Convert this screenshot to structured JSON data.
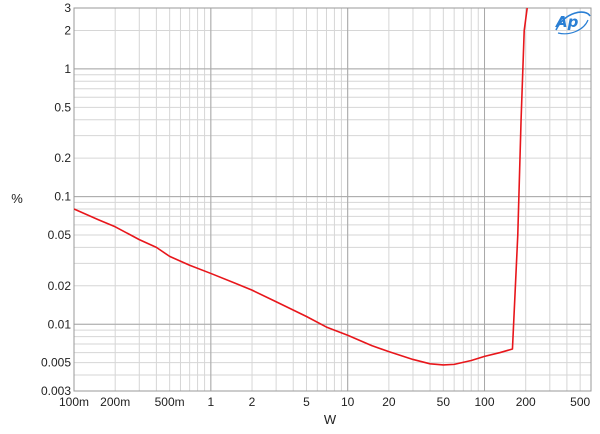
{
  "chart_data": {
    "type": "line",
    "xlabel": "W",
    "ylabel": "%",
    "x_scale": "log",
    "y_scale": "log",
    "xlim": [
      0.1,
      600
    ],
    "ylim": [
      0.003,
      3
    ],
    "grid": true,
    "x_ticks": [
      {
        "value": 0.1,
        "label": "100m"
      },
      {
        "value": 0.2,
        "label": "200m"
      },
      {
        "value": 0.5,
        "label": "500m"
      },
      {
        "value": 1,
        "label": "1"
      },
      {
        "value": 2,
        "label": "2"
      },
      {
        "value": 5,
        "label": "5"
      },
      {
        "value": 10,
        "label": "10"
      },
      {
        "value": 20,
        "label": "20"
      },
      {
        "value": 50,
        "label": "50"
      },
      {
        "value": 100,
        "label": "100"
      },
      {
        "value": 200,
        "label": "200"
      },
      {
        "value": 500,
        "label": "500"
      }
    ],
    "y_ticks": [
      {
        "value": 0.003,
        "label": "0.003"
      },
      {
        "value": 0.005,
        "label": "0.005"
      },
      {
        "value": 0.01,
        "label": "0.01"
      },
      {
        "value": 0.02,
        "label": "0.02"
      },
      {
        "value": 0.05,
        "label": "0.05"
      },
      {
        "value": 0.1,
        "label": "0.1"
      },
      {
        "value": 0.2,
        "label": "0.2"
      },
      {
        "value": 0.5,
        "label": "0.5"
      },
      {
        "value": 1,
        "label": "1"
      },
      {
        "value": 2,
        "label": "2"
      },
      {
        "value": 3,
        "label": "3"
      }
    ],
    "series": [
      {
        "color": "#e8161b",
        "points": [
          [
            0.1,
            0.08
          ],
          [
            0.15,
            0.066
          ],
          [
            0.2,
            0.058
          ],
          [
            0.3,
            0.046
          ],
          [
            0.4,
            0.04
          ],
          [
            0.5,
            0.034
          ],
          [
            0.7,
            0.029
          ],
          [
            1.0,
            0.025
          ],
          [
            1.5,
            0.021
          ],
          [
            2.0,
            0.0185
          ],
          [
            3.0,
            0.015
          ],
          [
            5.0,
            0.0115
          ],
          [
            7.0,
            0.0095
          ],
          [
            10.0,
            0.0082
          ],
          [
            15.0,
            0.0068
          ],
          [
            20.0,
            0.0061
          ],
          [
            30.0,
            0.0053
          ],
          [
            40.0,
            0.0049
          ],
          [
            50.0,
            0.0048
          ],
          [
            60.0,
            0.00485
          ],
          [
            80.0,
            0.0052
          ],
          [
            100.0,
            0.0056
          ],
          [
            130.0,
            0.006
          ],
          [
            160.0,
            0.0064
          ],
          [
            175.0,
            0.05
          ],
          [
            185.0,
            0.4
          ],
          [
            195.0,
            2.0
          ],
          [
            205.0,
            3.0
          ]
        ]
      }
    ]
  },
  "logo": {
    "text": "Ap",
    "color": "#2a7fd4"
  }
}
